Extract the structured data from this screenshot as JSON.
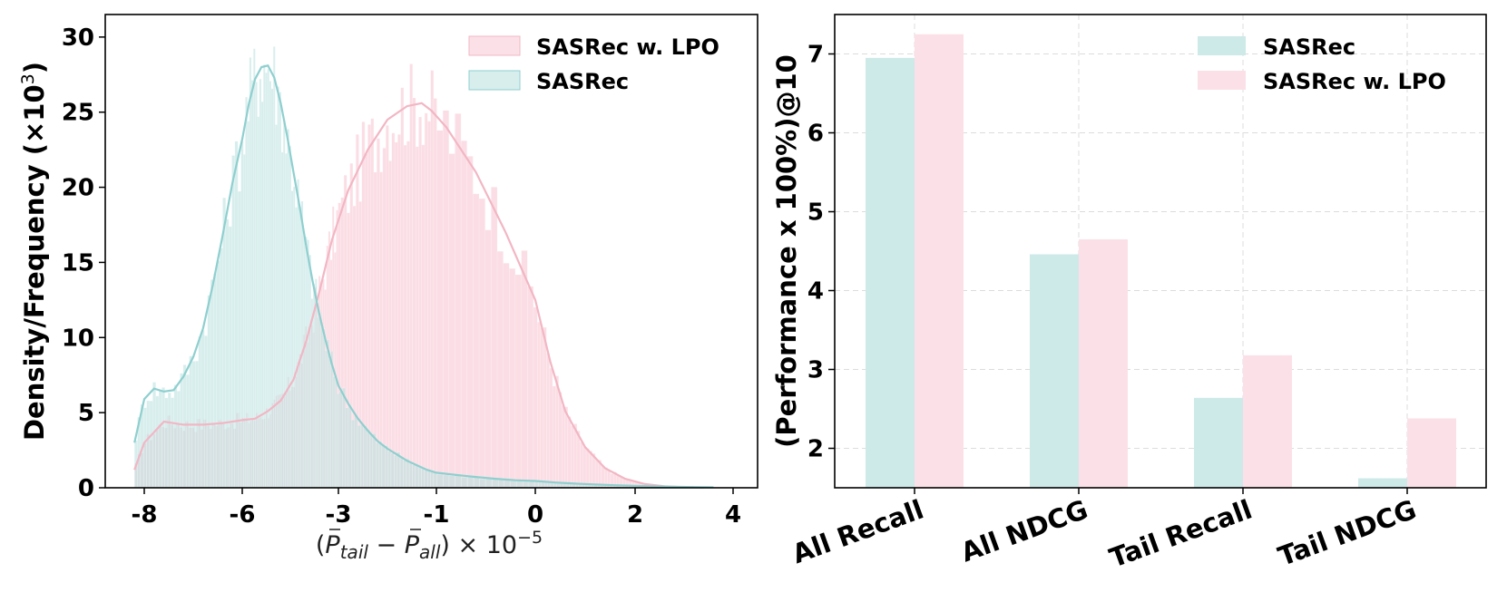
{
  "chart_data": [
    {
      "type": "histogram",
      "ylabel": "Density/Frequency (×10",
      "ylabel_sup": "3",
      "ylabel_tail": ")",
      "xlabel_parts": {
        "open": "(",
        "p1": "P",
        "s1": "tail",
        "minus": " − ",
        "p2": "P",
        "s2": "all",
        "close": ") × 10",
        "exp": "−5"
      },
      "xlim": [
        -8.4,
        4.6
      ],
      "ylim": [
        0,
        31.5
      ],
      "xticks": [
        -8,
        -6,
        -3,
        -1,
        0,
        2,
        4
      ],
      "xtick_labels": [
        "-8",
        "-6",
        "-3",
        "-1",
        "0",
        "2",
        "4"
      ],
      "yticks": [
        0,
        5,
        10,
        15,
        20,
        25,
        30
      ],
      "ytick_labels": [
        "0",
        "5",
        "10",
        "15",
        "20",
        "25",
        "30"
      ],
      "grid": false,
      "legend_position": "top-right",
      "series": [
        {
          "name": "SASRec w. LPO",
          "color": "#f8c8d4",
          "line_color": "#f2b6c4",
          "kde_x": [
            -8.2,
            -8.0,
            -7.6,
            -7.2,
            -6.8,
            -6.4,
            -6.0,
            -5.6,
            -5.2,
            -4.8,
            -4.4,
            -4.0,
            -3.6,
            -3.2,
            -2.8,
            -2.4,
            -2.0,
            -1.6,
            -1.3,
            -1.1,
            -0.9,
            -0.6,
            -0.3,
            0.0,
            0.3,
            0.6,
            1.0,
            1.4,
            1.8,
            2.2,
            2.6,
            3.0,
            3.4
          ],
          "kde_y": [
            1.2,
            3.0,
            4.4,
            4.2,
            4.2,
            4.3,
            4.5,
            4.6,
            5.1,
            5.8,
            7.2,
            9.8,
            13.0,
            16.5,
            19.8,
            22.5,
            24.5,
            25.4,
            25.6,
            25.1,
            24.0,
            21.0,
            17.0,
            12.5,
            8.4,
            5.1,
            2.7,
            1.3,
            0.6,
            0.25,
            0.1,
            0.04,
            0.02
          ]
        },
        {
          "name": "SASRec",
          "color": "#b7e0df",
          "line_color": "#8fcfcf",
          "kde_x": [
            -8.2,
            -8.0,
            -7.8,
            -7.6,
            -7.4,
            -7.2,
            -7.0,
            -6.8,
            -6.6,
            -6.4,
            -6.2,
            -6.0,
            -5.8,
            -5.6,
            -5.4,
            -5.2,
            -5.0,
            -4.8,
            -4.6,
            -4.4,
            -4.2,
            -4.0,
            -3.8,
            -3.6,
            -3.4,
            -3.2,
            -3.0,
            -2.8,
            -2.6,
            -2.4,
            -2.2,
            -2.0,
            -1.8,
            -1.6,
            -1.4,
            -1.2,
            -1.0,
            -0.8,
            -0.6,
            -0.4,
            -0.2,
            0.0,
            0.4,
            0.8,
            1.2,
            1.6,
            2.0,
            2.4,
            2.8,
            3.2,
            3.6
          ],
          "kde_y": [
            3.0,
            5.9,
            6.6,
            6.4,
            6.5,
            7.4,
            8.7,
            10.6,
            13.5,
            16.8,
            20.3,
            23.2,
            25.5,
            27.2,
            28.0,
            28.1,
            27.3,
            25.6,
            23.4,
            21.0,
            18.6,
            16.0,
            13.7,
            11.6,
            9.8,
            8.2,
            6.8,
            5.6,
            4.6,
            3.8,
            3.1,
            2.6,
            2.2,
            1.8,
            1.5,
            1.2,
            1.0,
            0.85,
            0.72,
            0.6,
            0.5,
            0.45,
            0.35,
            0.28,
            0.22,
            0.17,
            0.13,
            0.1,
            0.07,
            0.05,
            0.03
          ]
        }
      ]
    },
    {
      "type": "bar",
      "categories": [
        "All Recall",
        "All NDCG",
        "Tail Recall",
        "Tail NDCG"
      ],
      "ylabel": "(Performance x 100%)@10",
      "ylim": [
        1.5,
        7.5
      ],
      "yticks": [
        2,
        3,
        4,
        5,
        6,
        7
      ],
      "ytick_labels": [
        "2",
        "3",
        "4",
        "5",
        "6",
        "7"
      ],
      "grid": true,
      "legend_position": "top-right",
      "series": [
        {
          "name": "SASRec",
          "color": "#cde9e8",
          "values": [
            6.95,
            4.46,
            2.64,
            1.62
          ]
        },
        {
          "name": "SASRec w. LPO",
          "color": "#fbe1e7",
          "values": [
            7.25,
            4.65,
            3.18,
            2.38
          ]
        }
      ]
    }
  ]
}
